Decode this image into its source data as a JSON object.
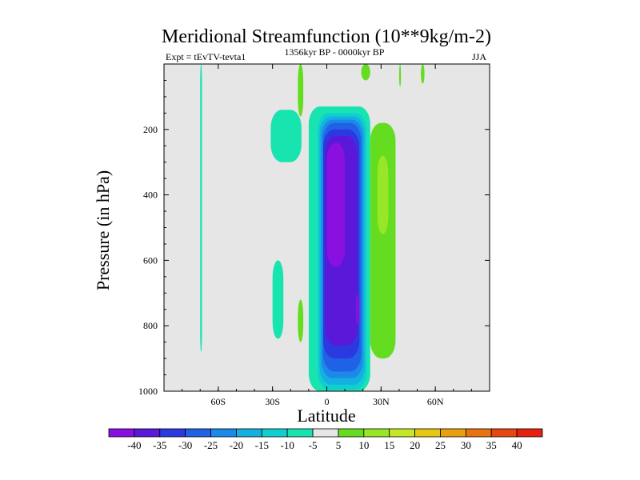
{
  "chart_data": {
    "type": "contour",
    "title": "Meridional Streamfunction (10**9kg/m-2)",
    "left_subtitle": "Expt = tEvTV-tevta1",
    "center_subtitle": "1356kyr BP - 0000kyr BP",
    "right_subtitle": "JJA",
    "xlabel": "Latitude",
    "ylabel": "Pressure (in hPa)",
    "xlim": [
      -90,
      90
    ],
    "ylim": [
      1000,
      0
    ],
    "x_ticks": [
      {
        "value": -60,
        "label": "60S"
      },
      {
        "value": -30,
        "label": "30S"
      },
      {
        "value": 0,
        "label": "0"
      },
      {
        "value": 30,
        "label": "30N"
      },
      {
        "value": 60,
        "label": "60N"
      }
    ],
    "y_ticks": [
      {
        "value": 200,
        "label": "200"
      },
      {
        "value": 400,
        "label": "400"
      },
      {
        "value": 600,
        "label": "600"
      },
      {
        "value": 800,
        "label": "800"
      },
      {
        "value": 1000,
        "label": "1000"
      }
    ],
    "colorbar": {
      "labels": [
        "-40",
        "-35",
        "-30",
        "-25",
        "-20",
        "-15",
        "-10",
        "-5",
        "5",
        "10",
        "15",
        "20",
        "25",
        "30",
        "35",
        "40"
      ],
      "colors": [
        "#8a10e0",
        "#5a18d8",
        "#2c38e0",
        "#1f62e6",
        "#1c88e8",
        "#14b0e0",
        "#10cfd0",
        "#18e4b0",
        "#e6e6e6",
        "#64dc20",
        "#98e628",
        "#c6e628",
        "#e6c814",
        "#e6a010",
        "#e67210",
        "#e64610",
        "#e62010"
      ]
    },
    "contours": [
      {
        "level": "-5",
        "color": "#18e4b0",
        "lat_range": [
          -70,
          -69
        ],
        "p_range": [
          0,
          880
        ]
      },
      {
        "level": "-5",
        "color": "#18e4b0",
        "lat_range": [
          -31,
          -14
        ],
        "p_range": [
          140,
          300
        ]
      },
      {
        "level": "-5",
        "color": "#18e4b0",
        "lat_range": [
          -30,
          -24
        ],
        "p_range": [
          600,
          840
        ]
      },
      {
        "level": "-5",
        "color": "#18e4b0",
        "lat_range": [
          -10,
          24
        ],
        "p_range": [
          130,
          1000
        ]
      },
      {
        "level": "-10",
        "color": "#10cfd0",
        "lat_range": [
          -5,
          22
        ],
        "p_range": [
          150,
          995
        ]
      },
      {
        "level": "-15",
        "color": "#14b0e0",
        "lat_range": [
          -4,
          21
        ],
        "p_range": [
          160,
          980
        ]
      },
      {
        "level": "-20",
        "color": "#1c88e8",
        "lat_range": [
          -3,
          20
        ],
        "p_range": [
          170,
          960
        ]
      },
      {
        "level": "-25",
        "color": "#1f62e6",
        "lat_range": [
          -2,
          19
        ],
        "p_range": [
          180,
          940
        ]
      },
      {
        "level": "-30",
        "color": "#2c38e0",
        "lat_range": [
          -2,
          18
        ],
        "p_range": [
          200,
          900
        ]
      },
      {
        "level": "-35",
        "color": "#5a18d8",
        "lat_range": [
          -1,
          17
        ],
        "p_range": [
          220,
          860
        ]
      },
      {
        "level": "-40",
        "color": "#8a10e0",
        "lat_range": [
          0,
          10
        ],
        "p_range": [
          240,
          620
        ]
      },
      {
        "level": "-40",
        "color": "#8a10e0",
        "lat_range": [
          16,
          18
        ],
        "p_range": [
          700,
          800
        ]
      },
      {
        "level": "5",
        "color": "#64dc20",
        "lat_range": [
          -16,
          -13
        ],
        "p_range": [
          0,
          160
        ]
      },
      {
        "level": "5",
        "color": "#64dc20",
        "lat_range": [
          19,
          24
        ],
        "p_range": [
          0,
          50
        ]
      },
      {
        "level": "5",
        "color": "#64dc20",
        "lat_range": [
          -16,
          -13
        ],
        "p_range": [
          720,
          850
        ]
      },
      {
        "level": "5",
        "color": "#64dc20",
        "lat_range": [
          24,
          38
        ],
        "p_range": [
          180,
          900
        ]
      },
      {
        "level": "10",
        "color": "#98e628",
        "lat_range": [
          28,
          34
        ],
        "p_range": [
          280,
          520
        ]
      },
      {
        "level": "5",
        "color": "#64dc20",
        "lat_range": [
          40,
          41
        ],
        "p_range": [
          0,
          70
        ]
      },
      {
        "level": "5",
        "color": "#64dc20",
        "lat_range": [
          52,
          54
        ],
        "p_range": [
          0,
          60
        ]
      }
    ]
  }
}
